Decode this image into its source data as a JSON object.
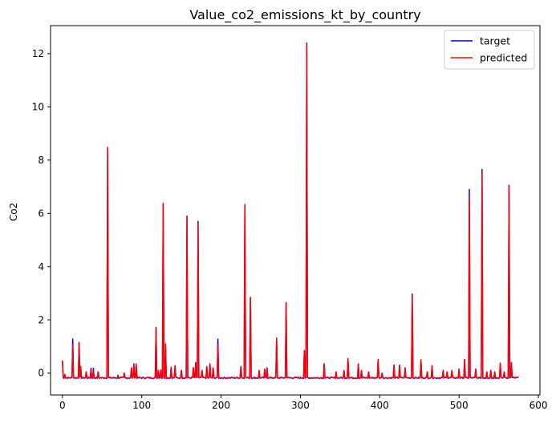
{
  "chart_data": {
    "type": "line",
    "title": "Value_co2_emissions_kt_by_country",
    "xlabel": "",
    "ylabel": "Co2",
    "xlim": [
      -15,
      602
    ],
    "ylim": [
      -0.82,
      13.05
    ],
    "x_ticks": [
      0,
      100,
      200,
      300,
      400,
      500,
      600
    ],
    "y_ticks": [
      0,
      2,
      4,
      6,
      8,
      10,
      12
    ],
    "grid": false,
    "legend_position": "top-right",
    "series": [
      {
        "name": "target",
        "color": "#0000ff",
        "baseline": -0.18,
        "spikes": [
          [
            0,
            0.45
          ],
          [
            3,
            -0.05
          ],
          [
            13,
            1.28
          ],
          [
            21,
            1.15
          ],
          [
            23,
            0.25
          ],
          [
            30,
            0.05
          ],
          [
            36,
            0.18
          ],
          [
            39,
            0.18
          ],
          [
            45,
            0.05
          ],
          [
            57,
            8.45
          ],
          [
            70,
            -0.08
          ],
          [
            78,
            0.0
          ],
          [
            87,
            0.2
          ],
          [
            90,
            0.35
          ],
          [
            93,
            0.3
          ],
          [
            118,
            1.7
          ],
          [
            121,
            0.1
          ],
          [
            124,
            0.12
          ],
          [
            127,
            6.35
          ],
          [
            130,
            1.05
          ],
          [
            137,
            0.22
          ],
          [
            142,
            0.28
          ],
          [
            150,
            0.1
          ],
          [
            157,
            5.88
          ],
          [
            165,
            0.2
          ],
          [
            168,
            0.4
          ],
          [
            171,
            5.7
          ],
          [
            176,
            0.1
          ],
          [
            182,
            0.25
          ],
          [
            186,
            0.35
          ],
          [
            190,
            0.2
          ],
          [
            196,
            1.28
          ],
          [
            225,
            0.25
          ],
          [
            230,
            6.3
          ],
          [
            237,
            2.82
          ],
          [
            248,
            0.1
          ],
          [
            255,
            0.15
          ],
          [
            258,
            0.2
          ],
          [
            270,
            1.3
          ],
          [
            282,
            2.62
          ],
          [
            305,
            0.85
          ],
          [
            308,
            12.4
          ],
          [
            330,
            0.35
          ],
          [
            345,
            0.05
          ],
          [
            355,
            0.1
          ],
          [
            360,
            0.5
          ],
          [
            373,
            0.35
          ],
          [
            377,
            0.1
          ],
          [
            386,
            0.05
          ],
          [
            398,
            0.5
          ],
          [
            403,
            0.0
          ],
          [
            418,
            0.3
          ],
          [
            425,
            0.3
          ],
          [
            432,
            0.2
          ],
          [
            441,
            2.95
          ],
          [
            452,
            0.5
          ],
          [
            460,
            0.05
          ],
          [
            466,
            0.28
          ],
          [
            480,
            0.1
          ],
          [
            485,
            0.05
          ],
          [
            491,
            0.1
          ],
          [
            500,
            0.15
          ],
          [
            507,
            0.5
          ],
          [
            513,
            6.9
          ],
          [
            521,
            0.15
          ],
          [
            529,
            7.65
          ],
          [
            535,
            0.05
          ],
          [
            540,
            0.1
          ],
          [
            545,
            0.05
          ],
          [
            552,
            0.35
          ],
          [
            557,
            0.05
          ],
          [
            563,
            7.05
          ],
          [
            566,
            0.4
          ],
          [
            573,
            -0.15
          ]
        ]
      },
      {
        "name": "predicted",
        "color": "#ff0000",
        "baseline": -0.18,
        "spikes": [
          [
            0,
            0.48
          ],
          [
            3,
            -0.05
          ],
          [
            13,
            1.05
          ],
          [
            21,
            1.15
          ],
          [
            23,
            0.25
          ],
          [
            30,
            0.05
          ],
          [
            36,
            0.12
          ],
          [
            39,
            0.1
          ],
          [
            45,
            0.05
          ],
          [
            57,
            8.48
          ],
          [
            70,
            -0.08
          ],
          [
            78,
            0.0
          ],
          [
            87,
            0.2
          ],
          [
            90,
            0.3
          ],
          [
            93,
            0.35
          ],
          [
            118,
            1.72
          ],
          [
            121,
            0.1
          ],
          [
            124,
            0.12
          ],
          [
            127,
            6.38
          ],
          [
            130,
            1.1
          ],
          [
            137,
            0.2
          ],
          [
            142,
            0.28
          ],
          [
            150,
            0.1
          ],
          [
            157,
            5.9
          ],
          [
            165,
            0.2
          ],
          [
            168,
            0.4
          ],
          [
            171,
            5.6
          ],
          [
            176,
            0.1
          ],
          [
            182,
            0.25
          ],
          [
            186,
            0.35
          ],
          [
            190,
            0.2
          ],
          [
            196,
            1.05
          ],
          [
            225,
            0.25
          ],
          [
            230,
            6.33
          ],
          [
            237,
            2.85
          ],
          [
            248,
            0.1
          ],
          [
            255,
            0.15
          ],
          [
            258,
            0.2
          ],
          [
            270,
            1.32
          ],
          [
            282,
            2.65
          ],
          [
            305,
            0.85
          ],
          [
            308,
            12.38
          ],
          [
            330,
            0.35
          ],
          [
            345,
            0.05
          ],
          [
            355,
            0.1
          ],
          [
            360,
            0.55
          ],
          [
            373,
            0.35
          ],
          [
            377,
            0.1
          ],
          [
            386,
            0.05
          ],
          [
            398,
            0.52
          ],
          [
            403,
            0.0
          ],
          [
            418,
            0.3
          ],
          [
            425,
            0.28
          ],
          [
            432,
            0.2
          ],
          [
            441,
            2.98
          ],
          [
            452,
            0.5
          ],
          [
            460,
            0.05
          ],
          [
            466,
            0.28
          ],
          [
            480,
            0.1
          ],
          [
            485,
            0.05
          ],
          [
            491,
            0.1
          ],
          [
            500,
            0.15
          ],
          [
            507,
            0.52
          ],
          [
            513,
            6.6
          ],
          [
            521,
            0.15
          ],
          [
            529,
            7.5
          ],
          [
            535,
            0.05
          ],
          [
            540,
            0.1
          ],
          [
            545,
            0.05
          ],
          [
            552,
            0.38
          ],
          [
            557,
            0.05
          ],
          [
            563,
            7.05
          ],
          [
            566,
            0.4
          ],
          [
            573,
            -0.15
          ]
        ]
      }
    ]
  }
}
